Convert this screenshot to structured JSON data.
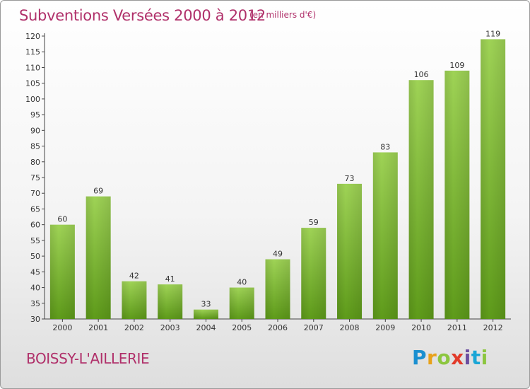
{
  "header": {
    "title": "Subventions Versées 2000 à 2012",
    "subtitle": "(en milliers d'€)"
  },
  "footer": {
    "place": "BOISSY-L'AILLERIE",
    "logo": [
      "P",
      "r",
      "o",
      "x",
      "i",
      "t",
      "i"
    ],
    "logo_colors": [
      "#1a8fd0",
      "#e8a21b",
      "#8cc63f",
      "#e23b2a",
      "#6b4ea0",
      "#19a6d6",
      "#8cc63f"
    ]
  },
  "chart_data": {
    "type": "bar",
    "title": "Subventions Versées 2000 à 2012",
    "subtitle": "(en milliers d'€)",
    "xlabel": "",
    "ylabel": "",
    "categories": [
      "2000",
      "2001",
      "2002",
      "2003",
      "2004",
      "2005",
      "2006",
      "2007",
      "2008",
      "2009",
      "2010",
      "2011",
      "2012"
    ],
    "values": [
      60,
      69,
      42,
      41,
      33,
      40,
      49,
      59,
      73,
      83,
      106,
      109,
      119
    ],
    "ylim": [
      30,
      120
    ],
    "ytick_step": 5,
    "grid": false,
    "bar_color_top": "#9fd356",
    "bar_color_bottom": "#5e9b1a"
  }
}
